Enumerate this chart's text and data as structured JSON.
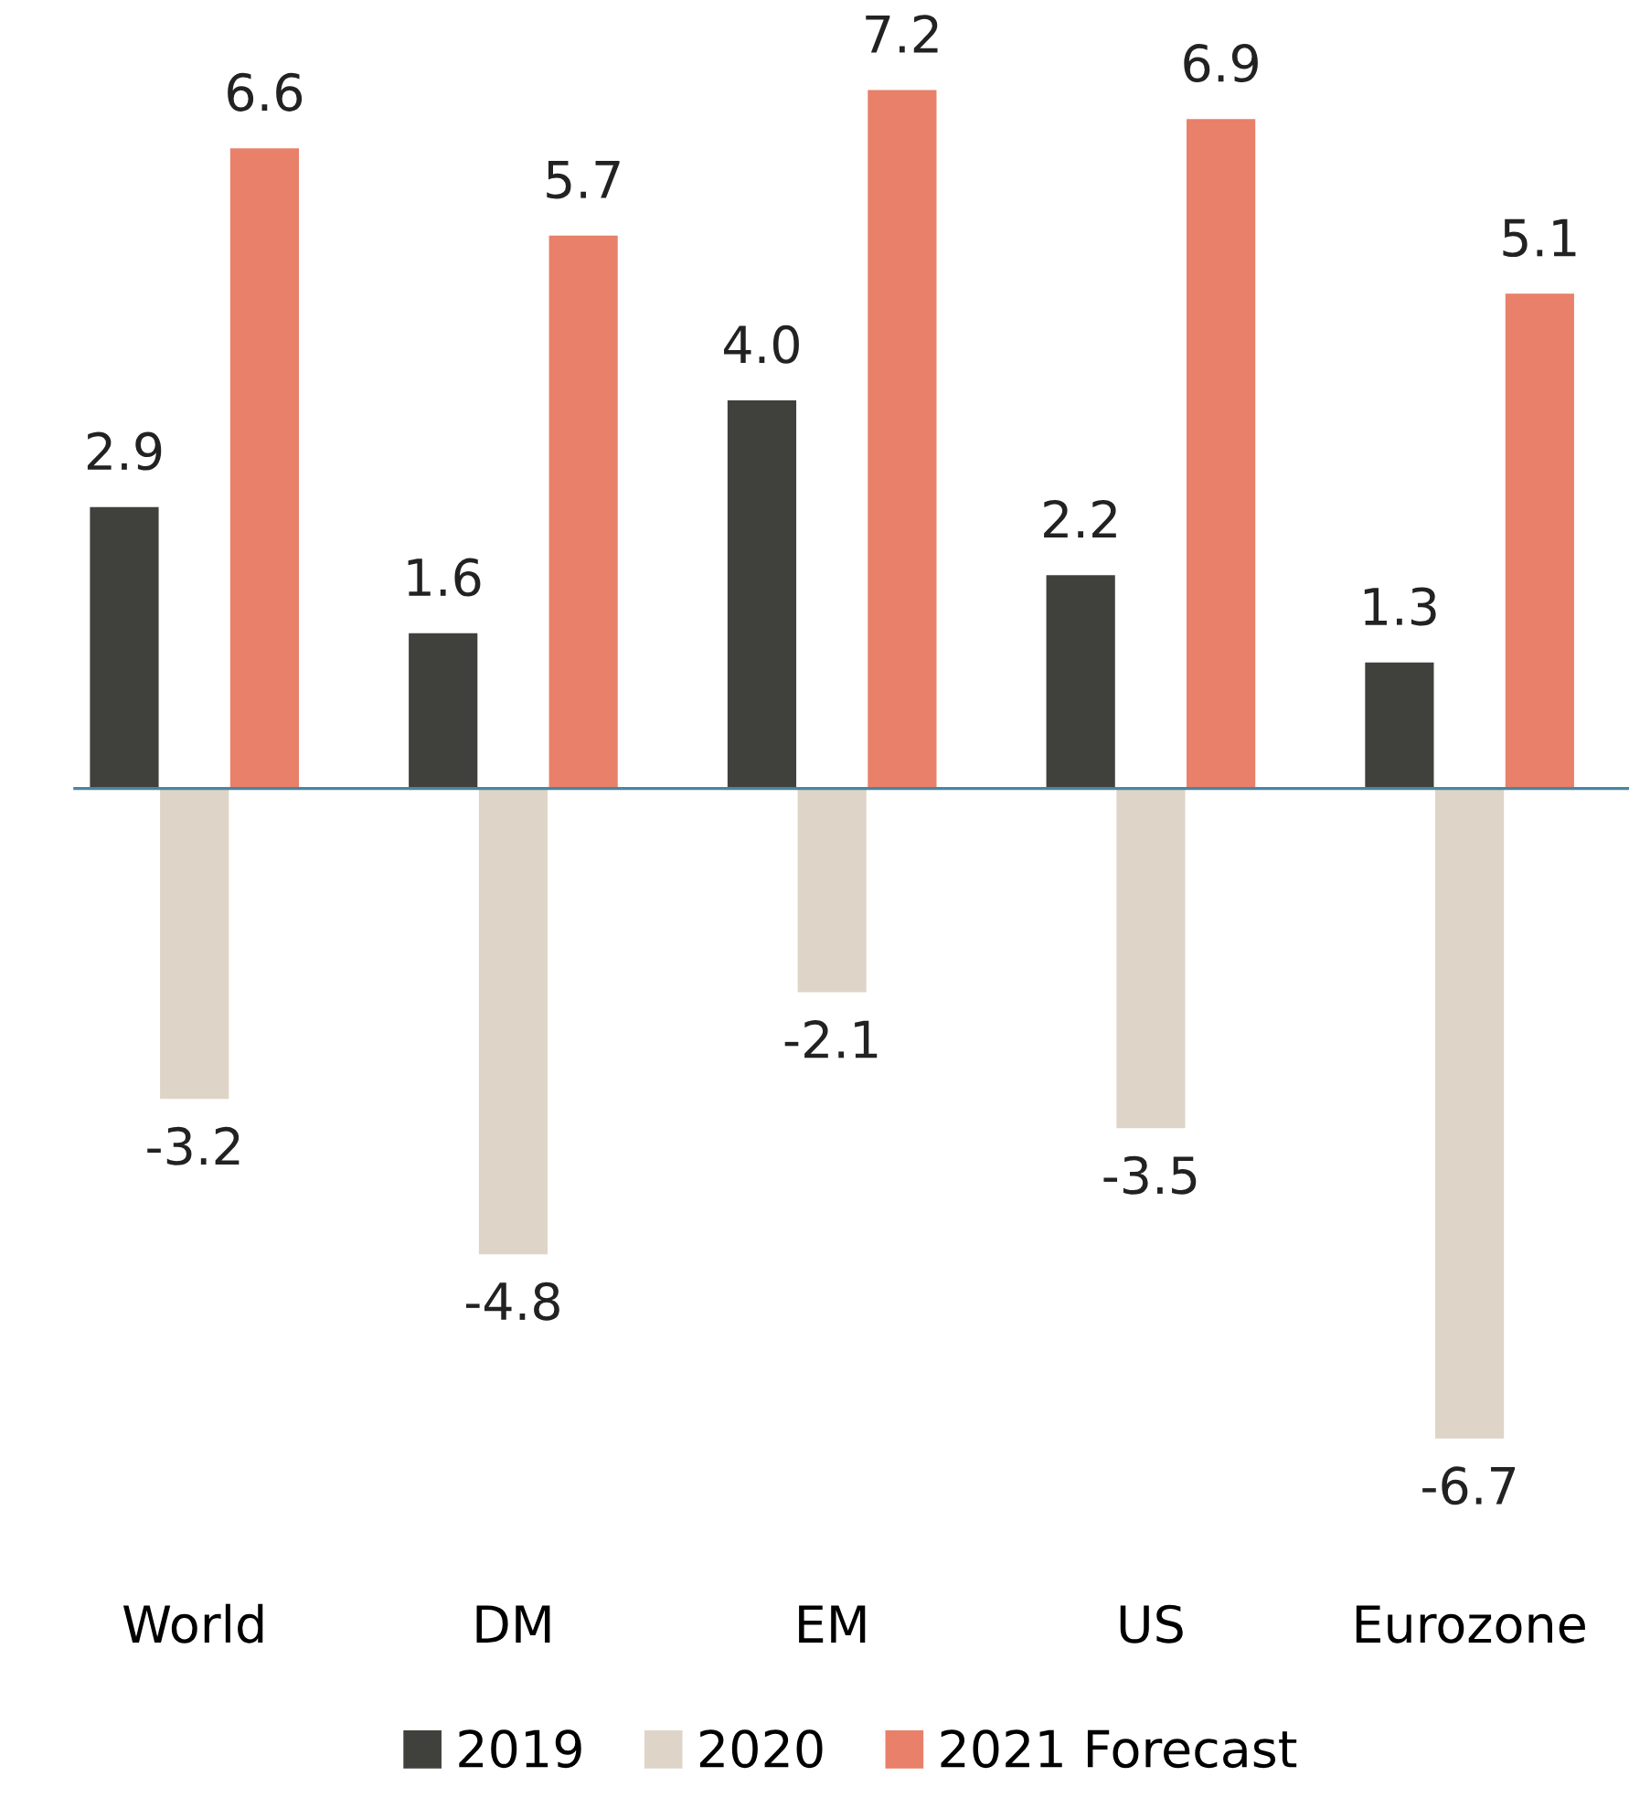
{
  "chart_data": {
    "type": "bar",
    "categories": [
      "World",
      "DM",
      "EM",
      "US",
      "Eurozone"
    ],
    "series": [
      {
        "name": "2019",
        "color": "#40403c",
        "values": [
          2.9,
          1.6,
          4.0,
          2.2,
          1.3
        ],
        "value_labels": [
          "2.9",
          "1.6",
          "4.0",
          "2.2",
          "1.3"
        ]
      },
      {
        "name": "2020",
        "color": "#ded5c8",
        "values": [
          -3.2,
          -4.8,
          -2.1,
          -3.5,
          -6.7
        ],
        "value_labels": [
          "-3.2",
          "-4.8",
          "-2.1",
          "-3.5",
          "-6.7"
        ]
      },
      {
        "name": "2021 Forecast",
        "color": "#e8806a",
        "values": [
          6.6,
          5.7,
          7.2,
          6.9,
          5.1
        ],
        "value_labels": [
          "6.6",
          "5.7",
          "7.2",
          "6.9",
          "5.1"
        ]
      }
    ],
    "ref_lines": [
      {
        "axis": "y",
        "value": 0,
        "color": "#4a86a0"
      }
    ],
    "grid": false,
    "legend": "bottom"
  }
}
